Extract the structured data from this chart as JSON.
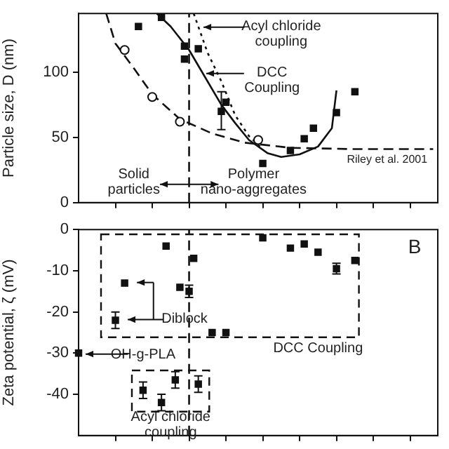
{
  "chart_data": [
    {
      "type": "scatter",
      "ylabel": "Particle size, D (nm)",
      "categories": [
        null,
        null,
        null,
        null,
        null,
        null,
        null,
        null,
        null,
        null,
        null,
        null,
        null,
        null,
        null,
        null,
        null,
        null,
        null,
        null,
        null,
        null,
        null,
        null,
        null,
        null,
        null,
        null,
        null,
        null,
        null,
        null,
        null,
        null,
        null,
        null,
        null,
        null,
        null,
        null,
        null,
        null,
        null,
        null,
        null,
        null,
        null,
        null,
        null,
        null,
        null,
        null,
        null,
        null,
        null,
        null,
        null,
        null,
        null,
        null,
        null,
        null,
        null,
        null,
        null,
        null,
        null,
        null,
        null,
        null,
        null,
        null,
        null,
        null,
        null,
        null,
        null,
        null,
        null
      ],
      "ylim": [
        0,
        145
      ],
      "yticks": [
        0,
        50,
        100
      ],
      "tick_labels": "y",
      "series": [
        {
          "marker": "square",
          "color": "#111111",
          "values": [
            null,
            null,
            null,
            null,
            null,
            null,
            null,
            null,
            null,
            null,
            null,
            null,
            null,
            135,
            null,
            null,
            null,
            null,
            142,
            null,
            null,
            null,
            null,
            120,
            null,
            null,
            118,
            null,
            null,
            null,
            null,
            70,
            77,
            null,
            null,
            null,
            null,
            null,
            null,
            null,
            30,
            null,
            null,
            null,
            null,
            null,
            40,
            null,
            null,
            49,
            null,
            57,
            null,
            null,
            null,
            null,
            69,
            null,
            null,
            null,
            85,
            null,
            null,
            null,
            null,
            null,
            null,
            null,
            null,
            null,
            null,
            null,
            null,
            null,
            null,
            null,
            null,
            null,
            null
          ],
          "errors": [
            null,
            null,
            null,
            null,
            null,
            null,
            null,
            null,
            null,
            null,
            null,
            null,
            null,
            null,
            null,
            null,
            null,
            null,
            null,
            null,
            null,
            null,
            null,
            null,
            null,
            null,
            null,
            null,
            null,
            null,
            null,
            [
              56,
              85
            ],
            null,
            null,
            null,
            null,
            null,
            null,
            null,
            null,
            null,
            null,
            null,
            null,
            null,
            null,
            null,
            null,
            null,
            null,
            null,
            null,
            null,
            null,
            null,
            null,
            null,
            null,
            null,
            null,
            null,
            null,
            null,
            null,
            null,
            null,
            null,
            null,
            null,
            null,
            null,
            null,
            null,
            null,
            null,
            null,
            null,
            null,
            null
          ]
        },
        {
          "marker": "square",
          "color": "#111111",
          "values": [
            null,
            null,
            null,
            null,
            null,
            null,
            null,
            null,
            null,
            null,
            null,
            null,
            null,
            null,
            null,
            null,
            null,
            null,
            null,
            null,
            null,
            null,
            null,
            110,
            null,
            null,
            null,
            null,
            null,
            null,
            null,
            null,
            null,
            null,
            null,
            null,
            null,
            null,
            null,
            null,
            null,
            null,
            null,
            null,
            null,
            null,
            null,
            null,
            null,
            null,
            null,
            null,
            null,
            null,
            null,
            null,
            null,
            null,
            null,
            null,
            null,
            null,
            null,
            null,
            null,
            null,
            null,
            null,
            null,
            null,
            null,
            null,
            null,
            null,
            null,
            null,
            null,
            null,
            null
          ]
        },
        {
          "marker": "circle",
          "color": "#111111",
          "values": [
            null,
            null,
            null,
            null,
            null,
            null,
            null,
            null,
            null,
            null,
            117,
            null,
            null,
            null,
            null,
            null,
            81,
            null,
            null,
            null,
            null,
            null,
            62,
            null,
            null,
            null,
            null,
            null,
            null,
            null,
            null,
            null,
            null,
            null,
            null,
            null,
            null,
            null,
            null,
            48,
            null,
            null,
            null,
            null,
            null,
            null,
            null,
            null,
            null,
            null,
            null,
            null,
            null,
            null,
            null,
            null,
            null,
            null,
            null,
            null,
            null,
            null,
            null,
            null,
            null,
            null,
            null,
            null,
            null,
            null,
            null,
            null,
            null,
            null,
            null,
            null,
            null,
            null,
            null
          ]
        },
        {
          "type": "line",
          "marker": "none",
          "line_style": "solid",
          "color": "#111111",
          "values": [
            null,
            null,
            null,
            null,
            null,
            null,
            null,
            null,
            null,
            null,
            null,
            null,
            null,
            null,
            null,
            null,
            null,
            145,
            null,
            null,
            135,
            null,
            null,
            null,
            117,
            null,
            null,
            99,
            null,
            null,
            null,
            75,
            null,
            null,
            61,
            null,
            null,
            48,
            null,
            null,
            null,
            38,
            null,
            null,
            35,
            null,
            null,
            null,
            37,
            null,
            null,
            null,
            43,
            null,
            null,
            57,
            86,
            null,
            null,
            null,
            null,
            null,
            null,
            null,
            null,
            null,
            null,
            null,
            null,
            null,
            null,
            null,
            null,
            null,
            null,
            null,
            null,
            null,
            null
          ]
        },
        {
          "type": "line",
          "marker": "none",
          "line_style": "dotted",
          "color": "#111111",
          "values": [
            null,
            null,
            null,
            null,
            null,
            null,
            null,
            null,
            null,
            null,
            null,
            null,
            null,
            null,
            null,
            null,
            null,
            null,
            null,
            null,
            null,
            null,
            null,
            null,
            null,
            145,
            null,
            null,
            115,
            null,
            null,
            93,
            null,
            null,
            67,
            null,
            null,
            51,
            null,
            null,
            41,
            null,
            null,
            null,
            null,
            null,
            null,
            null,
            null,
            null,
            null,
            null,
            null,
            null,
            null,
            null,
            null,
            null,
            null,
            null,
            null,
            null,
            null,
            null,
            null,
            null,
            null,
            null,
            null,
            null,
            null,
            null,
            null,
            null,
            null,
            null,
            null,
            null,
            null
          ]
        },
        {
          "type": "line",
          "marker": "none",
          "line_style": "dashed",
          "color": "#111111",
          "values": [
            null,
            null,
            null,
            null,
            null,
            null,
            145,
            null,
            122,
            null,
            null,
            null,
            103,
            null,
            null,
            null,
            83,
            null,
            null,
            null,
            null,
            null,
            64,
            null,
            null,
            null,
            null,
            null,
            null,
            53,
            null,
            null,
            null,
            null,
            null,
            null,
            46,
            null,
            null,
            null,
            null,
            null,
            null,
            null,
            null,
            null,
            42,
            null,
            null,
            null,
            null,
            null,
            null,
            null,
            null,
            null,
            null,
            null,
            null,
            null,
            41,
            null,
            null,
            null,
            null,
            null,
            null,
            null,
            null,
            null,
            null,
            null,
            null,
            null,
            null,
            null,
            null,
            41,
            null
          ]
        }
      ],
      "annotations": [
        "Acyl chloride coupling",
        "DCC Coupling",
        "Riley et al. 2001",
        "Solid particles",
        "Polymer nano-aggregates"
      ]
    },
    {
      "type": "scatter",
      "ylabel": "Zeta potential, ζ (mV)",
      "categories": [
        null,
        null,
        null,
        null,
        null,
        null,
        null,
        null,
        null,
        null,
        null,
        null,
        null,
        null,
        null,
        null,
        null,
        null,
        null,
        null,
        null,
        null,
        null,
        null,
        null,
        null,
        null,
        null,
        null,
        null,
        null,
        null,
        null,
        null,
        null,
        null,
        null,
        null,
        null,
        null,
        null,
        null,
        null,
        null,
        null,
        null,
        null,
        null,
        null,
        null,
        null,
        null,
        null,
        null,
        null,
        null,
        null,
        null,
        null,
        null,
        null,
        null,
        null,
        null,
        null,
        null,
        null,
        null,
        null,
        null,
        null,
        null,
        null,
        null,
        null,
        null,
        null,
        null,
        null
      ],
      "ylim": [
        -50,
        0
      ],
      "yticks": [
        -40,
        -30,
        -20,
        -10,
        0
      ],
      "tick_labels": "y",
      "series": [
        {
          "marker": "square",
          "color": "#111111",
          "values": [
            -30,
            null,
            null,
            null,
            null,
            null,
            null,
            null,
            -22,
            null,
            -13,
            null,
            null,
            null,
            -39,
            null,
            null,
            null,
            -42,
            -4,
            null,
            -36.5,
            -14,
            null,
            -15,
            -7,
            -37.5,
            null,
            null,
            -25,
            null,
            null,
            -25,
            null,
            null,
            null,
            null,
            null,
            null,
            null,
            -2,
            null,
            null,
            null,
            null,
            null,
            -4.5,
            null,
            null,
            -3.5,
            null,
            null,
            -5.5,
            null,
            null,
            null,
            -9.5,
            null,
            null,
            null,
            -7.5,
            null,
            null,
            null,
            null,
            null,
            null,
            null,
            null,
            null,
            null,
            null,
            null,
            null,
            null,
            null,
            null,
            null,
            null
          ],
          "errors": [
            null,
            null,
            null,
            null,
            null,
            null,
            null,
            null,
            2,
            null,
            null,
            null,
            null,
            null,
            2,
            null,
            null,
            null,
            2,
            null,
            null,
            2,
            null,
            null,
            1.5,
            null,
            2,
            null,
            null,
            null,
            null,
            null,
            null,
            null,
            null,
            null,
            null,
            null,
            null,
            null,
            null,
            null,
            null,
            null,
            null,
            null,
            null,
            null,
            null,
            null,
            null,
            null,
            null,
            null,
            null,
            null,
            1.3,
            null,
            null,
            null,
            null,
            null,
            null,
            null,
            null,
            null,
            null,
            null,
            null,
            null,
            null,
            null,
            null,
            null,
            null,
            null,
            null,
            null,
            null
          ]
        }
      ],
      "annotations": [
        "B",
        "Diblock",
        "OH-g-PLA",
        "DCC Coupling",
        "Acyl chloride coupling"
      ]
    }
  ]
}
